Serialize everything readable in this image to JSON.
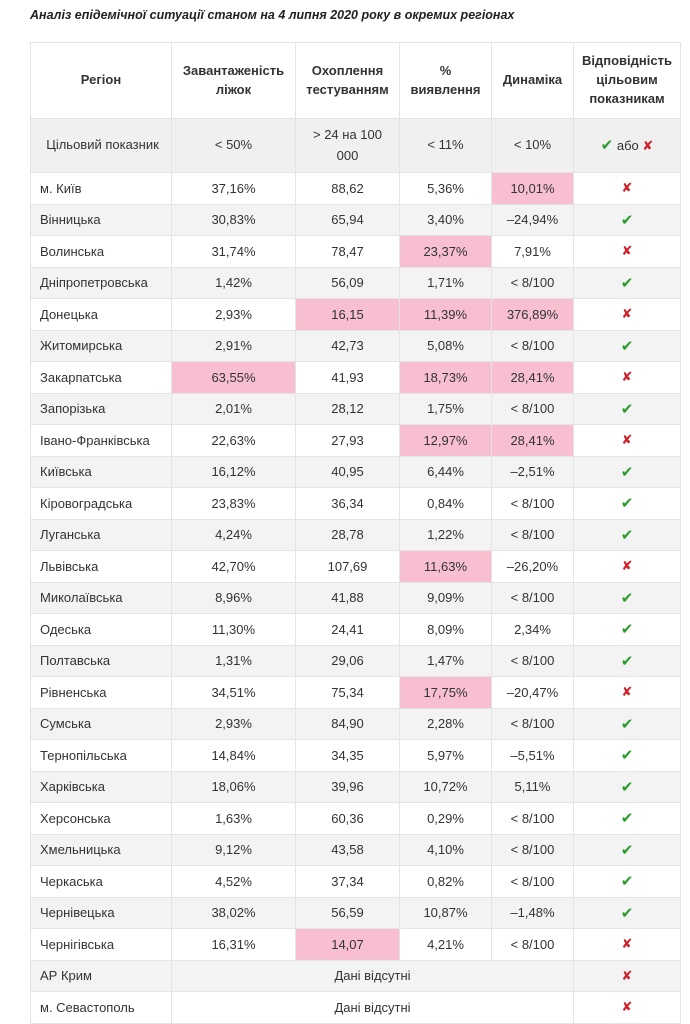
{
  "title": "Аналіз епідемічної ситуації станом на 4 липня 2020 року в окремих регіонах",
  "colors": {
    "highlight": "#f7bfd0",
    "check": "#2c9b2c",
    "cross": "#d0202a"
  },
  "header": {
    "region": "Регіон",
    "beds": "Завантаженість ліжок",
    "testing": "Охоплення тестуванням",
    "detection": "% виявлення",
    "dynamics": "Динаміка",
    "compliance": "Відповідність цільовим показникам"
  },
  "target": {
    "region": "Цільовий показник",
    "beds": "< 50%",
    "testing": "> 24 на 100 000",
    "detection": "< 11%",
    "dynamics": "< 10%",
    "check": "✔",
    "or": "або",
    "cross": "✘"
  },
  "rows": [
    {
      "region": "м. Київ",
      "beds": "37,16%",
      "testing": "88,62",
      "detection": "5,36%",
      "dynamics": "10,01%",
      "status": "no",
      "hl": [
        "dynamics"
      ]
    },
    {
      "region": "Вінницька",
      "beds": "30,83%",
      "testing": "65,94",
      "detection": "3,40%",
      "dynamics": "–24,94%",
      "status": "ok",
      "hl": []
    },
    {
      "region": "Волинська",
      "beds": "31,74%",
      "testing": "78,47",
      "detection": "23,37%",
      "dynamics": "7,91%",
      "status": "no",
      "hl": [
        "detection"
      ]
    },
    {
      "region": "Дніпропетровська",
      "beds": "1,42%",
      "testing": "56,09",
      "detection": "1,71%",
      "dynamics": "< 8/100",
      "status": "ok",
      "hl": []
    },
    {
      "region": "Донецька",
      "beds": "2,93%",
      "testing": "16,15",
      "detection": "11,39%",
      "dynamics": "376,89%",
      "status": "no",
      "hl": [
        "testing",
        "detection",
        "dynamics"
      ]
    },
    {
      "region": "Житомирська",
      "beds": "2,91%",
      "testing": "42,73",
      "detection": "5,08%",
      "dynamics": "< 8/100",
      "status": "ok",
      "hl": []
    },
    {
      "region": "Закарпатська",
      "beds": "63,55%",
      "testing": "41,93",
      "detection": "18,73%",
      "dynamics": "28,41%",
      "status": "no",
      "hl": [
        "beds",
        "detection",
        "dynamics"
      ]
    },
    {
      "region": "Запорізька",
      "beds": "2,01%",
      "testing": "28,12",
      "detection": "1,75%",
      "dynamics": "< 8/100",
      "status": "ok",
      "hl": []
    },
    {
      "region": "Івано-Франківська",
      "beds": "22,63%",
      "testing": "27,93",
      "detection": "12,97%",
      "dynamics": "28,41%",
      "status": "no",
      "hl": [
        "detection",
        "dynamics"
      ]
    },
    {
      "region": "Київська",
      "beds": "16,12%",
      "testing": "40,95",
      "detection": "6,44%",
      "dynamics": "–2,51%",
      "status": "ok",
      "hl": []
    },
    {
      "region": "Кіровоградська",
      "beds": "23,83%",
      "testing": "36,34",
      "detection": "0,84%",
      "dynamics": "< 8/100",
      "status": "ok",
      "hl": []
    },
    {
      "region": "Луганська",
      "beds": "4,24%",
      "testing": "28,78",
      "detection": "1,22%",
      "dynamics": "< 8/100",
      "status": "ok",
      "hl": []
    },
    {
      "region": "Львівська",
      "beds": "42,70%",
      "testing": "107,69",
      "detection": "11,63%",
      "dynamics": "–26,20%",
      "status": "no",
      "hl": [
        "detection"
      ]
    },
    {
      "region": "Миколаївська",
      "beds": "8,96%",
      "testing": "41,88",
      "detection": "9,09%",
      "dynamics": "< 8/100",
      "status": "ok",
      "hl": []
    },
    {
      "region": "Одеська",
      "beds": "11,30%",
      "testing": "24,41",
      "detection": "8,09%",
      "dynamics": "2,34%",
      "status": "ok",
      "hl": []
    },
    {
      "region": "Полтавська",
      "beds": "1,31%",
      "testing": "29,06",
      "detection": "1,47%",
      "dynamics": "< 8/100",
      "status": "ok",
      "hl": []
    },
    {
      "region": "Рівненська",
      "beds": "34,51%",
      "testing": "75,34",
      "detection": "17,75%",
      "dynamics": "–20,47%",
      "status": "no",
      "hl": [
        "detection"
      ]
    },
    {
      "region": "Сумська",
      "beds": "2,93%",
      "testing": "84,90",
      "detection": "2,28%",
      "dynamics": "< 8/100",
      "status": "ok",
      "hl": []
    },
    {
      "region": "Тернопільська",
      "beds": "14,84%",
      "testing": "34,35",
      "detection": "5,97%",
      "dynamics": "–5,51%",
      "status": "ok",
      "hl": []
    },
    {
      "region": "Харківська",
      "beds": "18,06%",
      "testing": "39,96",
      "detection": "10,72%",
      "dynamics": "5,11%",
      "status": "ok",
      "hl": []
    },
    {
      "region": "Херсонська",
      "beds": "1,63%",
      "testing": "60,36",
      "detection": "0,29%",
      "dynamics": "< 8/100",
      "status": "ok",
      "hl": []
    },
    {
      "region": "Хмельницька",
      "beds": "9,12%",
      "testing": "43,58",
      "detection": "4,10%",
      "dynamics": "< 8/100",
      "status": "ok",
      "hl": []
    },
    {
      "region": "Черкаська",
      "beds": "4,52%",
      "testing": "37,34",
      "detection": "0,82%",
      "dynamics": "< 8/100",
      "status": "ok",
      "hl": []
    },
    {
      "region": "Чернівецька",
      "beds": "38,02%",
      "testing": "56,59",
      "detection": "10,87%",
      "dynamics": "–1,48%",
      "status": "ok",
      "hl": []
    },
    {
      "region": "Чернігівська",
      "beds": "16,31%",
      "testing": "14,07",
      "detection": "4,21%",
      "dynamics": "< 8/100",
      "status": "no",
      "hl": [
        "testing"
      ]
    },
    {
      "region": "АР Крим",
      "nodata": "Дані відсутні",
      "status": "no",
      "hl": []
    },
    {
      "region": "м. Севастополь",
      "nodata": "Дані відсутні",
      "status": "no",
      "hl": []
    }
  ],
  "marks": {
    "ok": "✔",
    "no": "✘"
  }
}
